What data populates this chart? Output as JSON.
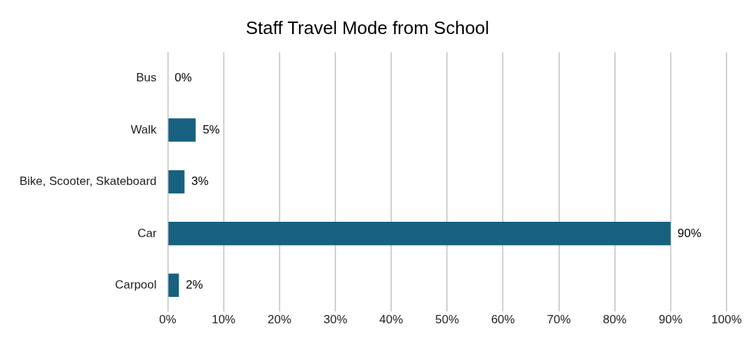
{
  "chart_data": {
    "type": "bar",
    "title": "Staff Travel Mode from School",
    "orientation": "horizontal",
    "categories": [
      "Bus",
      "Walk",
      "Bike, Scooter, Skateboard",
      "Car",
      "Carpool"
    ],
    "values": [
      0,
      5,
      3,
      90,
      2
    ],
    "value_labels": [
      "0%",
      "5%",
      "3%",
      "90%",
      "2%"
    ],
    "color": "#17607f",
    "xlim": [
      0,
      100
    ],
    "xticks": [
      {
        "value": 0,
        "label": "0%"
      },
      {
        "value": 10,
        "label": "10%"
      },
      {
        "value": 20,
        "label": "20%"
      },
      {
        "value": 30,
        "label": "30%"
      },
      {
        "value": 40,
        "label": "40%"
      },
      {
        "value": 50,
        "label": "50%"
      },
      {
        "value": 60,
        "label": "60%"
      },
      {
        "value": 70,
        "label": "70%"
      },
      {
        "value": 80,
        "label": "80%"
      },
      {
        "value": 90,
        "label": "90%"
      },
      {
        "value": 100,
        "label": "100%"
      }
    ],
    "grid": "x",
    "legend": false
  }
}
